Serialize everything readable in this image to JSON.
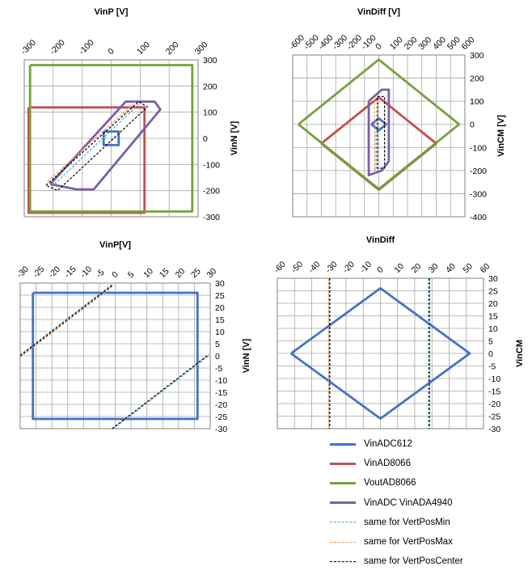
{
  "chart_data": [
    {
      "type": "line",
      "xlabel": "VinP [V]",
      "ylabel": "VinN [V]",
      "xlim": [
        -300,
        300
      ],
      "ylim": [
        -300,
        300
      ],
      "xticks": [
        "-300",
        "-200",
        "-100",
        "0",
        "100",
        "200",
        "300"
      ],
      "yticks": [
        "300",
        "200",
        "100",
        "0",
        "-100",
        "-200",
        "-300"
      ],
      "grid": true,
      "series": [
        {
          "series_ref": 0,
          "points": [
            [
              -26,
              26
            ],
            [
              26,
              26
            ],
            [
              26,
              -26
            ],
            [
              -26,
              -26
            ],
            [
              -26,
              26
            ]
          ]
        },
        {
          "series_ref": 1,
          "points": [
            [
              -285,
              118
            ],
            [
              115,
              118
            ],
            [
              115,
              -285
            ],
            [
              -285,
              -285
            ],
            [
              -285,
              118
            ]
          ]
        },
        {
          "series_ref": 2,
          "points": [
            [
              -280,
              280
            ],
            [
              280,
              280
            ],
            [
              280,
              -280
            ],
            [
              -280,
              -280
            ],
            [
              -280,
              280
            ]
          ]
        },
        {
          "series_ref": 3,
          "points": [
            [
              -210,
              -175
            ],
            [
              -120,
              -195
            ],
            [
              -60,
              -195
            ],
            [
              170,
              110
            ],
            [
              150,
              140
            ],
            [
              50,
              140
            ],
            [
              -210,
              -175
            ]
          ]
        },
        {
          "series_ref": 4,
          "points": [
            [
              -205,
              -185
            ],
            [
              95,
              130
            ]
          ]
        },
        {
          "series_ref": 5,
          "points": [
            [
              -220,
              -165
            ],
            [
              85,
              140
            ]
          ]
        },
        {
          "series_ref": 6,
          "points": [
            [
              -225,
              -180
            ],
            [
              95,
              140
            ],
            [
              125,
              120
            ],
            [
              -185,
              -200
            ],
            [
              -225,
              -180
            ]
          ]
        }
      ]
    },
    {
      "type": "line",
      "xlabel": "VinDiff [V]",
      "ylabel": "VinCM [V]",
      "xlim": [
        -600,
        600
      ],
      "ylim": [
        -400,
        300
      ],
      "xticks": [
        "-600",
        "-500",
        "-400",
        "-300",
        "-200",
        "-100",
        "0",
        "100",
        "200",
        "300",
        "400",
        "500",
        "600"
      ],
      "yticks": [
        "300",
        "200",
        "100",
        "0",
        "-100",
        "-200",
        "-300",
        "-400"
      ],
      "grid": true,
      "series": [
        {
          "series_ref": 0,
          "points": [
            [
              -52,
              0
            ],
            [
              0,
              26
            ],
            [
              52,
              0
            ],
            [
              0,
              -26
            ],
            [
              -52,
              0
            ]
          ]
        },
        {
          "series_ref": 1,
          "points": [
            [
              -400,
              -83
            ],
            [
              0,
              117
            ],
            [
              400,
              -83
            ],
            [
              0,
              -283
            ],
            [
              -400,
              -83
            ]
          ]
        },
        {
          "series_ref": 2,
          "points": [
            [
              -560,
              0
            ],
            [
              0,
              280
            ],
            [
              560,
              0
            ],
            [
              0,
              -280
            ],
            [
              -560,
              0
            ]
          ]
        },
        {
          "series_ref": 3,
          "points": [
            [
              -70,
              100
            ],
            [
              20,
              150
            ],
            [
              70,
              150
            ],
            [
              70,
              -160
            ],
            [
              20,
              -200
            ],
            [
              -70,
              -220
            ],
            [
              -70,
              100
            ]
          ]
        },
        {
          "series_ref": 4,
          "points": [
            [
              -20,
              -210
            ],
            [
              -20,
              -30
            ]
          ]
        },
        {
          "series_ref": 5,
          "points": [
            [
              -30,
              110
            ],
            [
              -30,
              -200
            ]
          ]
        },
        {
          "series_ref": 6,
          "points": [
            [
              -10,
              120
            ],
            [
              40,
              120
            ],
            [
              40,
              -190
            ],
            [
              -10,
              -190
            ],
            [
              -10,
              120
            ]
          ]
        }
      ]
    },
    {
      "type": "line",
      "xlabel": "VinP[V]",
      "ylabel": "VinN [V]",
      "xlim": [
        -30,
        30
      ],
      "ylim": [
        -30,
        30
      ],
      "xticks": [
        "-30",
        "-25",
        "-20",
        "-15",
        "-10",
        "-5",
        "0",
        "5",
        "10",
        "15",
        "20",
        "25",
        "30"
      ],
      "yticks": [
        "30",
        "25",
        "20",
        "15",
        "10",
        "5",
        "0",
        "-5",
        "-10",
        "-15",
        "-20",
        "-25",
        "-30"
      ],
      "grid": true,
      "series": [
        {
          "series_ref": 0,
          "points": [
            [
              -26,
              26
            ],
            [
              26,
              26
            ],
            [
              26,
              -26
            ],
            [
              -26,
              -26
            ],
            [
              -26,
              26
            ]
          ]
        },
        {
          "series_ref": 4,
          "points": [
            [
              -30,
              0.5
            ],
            [
              -1,
              29.5
            ]
          ]
        },
        {
          "series_ref": 5,
          "points": [
            [
              -30,
              -0.5
            ],
            [
              -0.5,
              29
            ]
          ]
        },
        {
          "series_ref": 6,
          "points": [
            [
              -30,
              0
            ],
            [
              -1,
              29
            ]
          ]
        },
        {
          "series_ref": 4,
          "points": [
            [
              -0.5,
              -30
            ],
            [
              30,
              0.5
            ]
          ]
        },
        {
          "series_ref": 6,
          "points": [
            [
              -1,
              -30
            ],
            [
              29.5,
              0.5
            ]
          ]
        }
      ]
    },
    {
      "type": "line",
      "xlabel": "VinDiff",
      "ylabel": "VinCM",
      "xlim": [
        -60,
        60
      ],
      "ylim": [
        -30,
        30
      ],
      "xticks": [
        "-60",
        "-50",
        "-40",
        "-30",
        "-20",
        "-10",
        "0",
        "10",
        "20",
        "30",
        "40",
        "50",
        "60"
      ],
      "yticks": [
        "30",
        "25",
        "20",
        "15",
        "10",
        "5",
        "0",
        "-5",
        "-10",
        "-15",
        "-20",
        "-25",
        "-30"
      ],
      "grid": true,
      "series": [
        {
          "series_ref": 0,
          "points": [
            [
              -52,
              0
            ],
            [
              0,
              26
            ],
            [
              52,
              0
            ],
            [
              0,
              -26
            ],
            [
              -52,
              0
            ]
          ]
        },
        {
          "series_ref": 5,
          "points": [
            [
              -30,
              30
            ],
            [
              -30,
              -30
            ]
          ]
        },
        {
          "series_ref": 6,
          "points": [
            [
              -29.5,
              30
            ],
            [
              -29.5,
              -30
            ]
          ]
        },
        {
          "series_ref": 4,
          "points": [
            [
              28,
              30
            ],
            [
              28,
              -30
            ]
          ]
        },
        {
          "series_ref": 6,
          "points": [
            [
              28.5,
              30
            ],
            [
              28.5,
              -30
            ]
          ]
        }
      ]
    }
  ],
  "legend": {
    "placement": "bottom-right",
    "items": [
      {
        "label": "VinADC612",
        "color": "#4472C4",
        "dashed": false
      },
      {
        "label": "VinAD8066",
        "color": "#C0504D",
        "dashed": false
      },
      {
        "label": "VoutAD8066",
        "color": "#77A03B",
        "dashed": false
      },
      {
        "label": "VinADC VinADA4940",
        "color": "#7B5EA7",
        "dashed": false
      },
      {
        "label": "same for VertPosMin",
        "color": "#4BACC6",
        "dashed": true
      },
      {
        "label": "same for VertPosMax",
        "color": "#F79646",
        "dashed": true
      },
      {
        "label": "same for VertPosCenter",
        "color": "#000000",
        "dashed": true
      }
    ]
  }
}
